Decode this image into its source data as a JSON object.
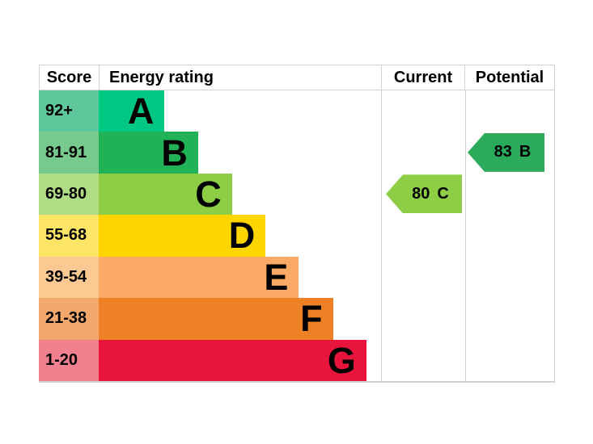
{
  "table": {
    "headers": [
      {
        "id": "score",
        "label": "Score"
      },
      {
        "id": "energy_rating",
        "label": "Energy rating"
      },
      {
        "id": "current",
        "label": "Current"
      },
      {
        "id": "potential",
        "label": "Potential"
      }
    ]
  },
  "chart_data": {
    "type": "bar",
    "title": "Energy rating",
    "description": "EPC energy efficiency rating chart with score bands A-G",
    "bands": [
      {
        "letter": "A",
        "score": "92+",
        "color": "#00c781",
        "score_bg": "#5ec79c",
        "bar_pct": 23.3
      },
      {
        "letter": "B",
        "score": "81-91",
        "color": "#21b258",
        "score_bg": "#77ca8e",
        "bar_pct": 35.2
      },
      {
        "letter": "C",
        "score": "69-80",
        "color": "#8dce46",
        "score_bg": "#afdc84",
        "bar_pct": 47.2
      },
      {
        "letter": "D",
        "score": "55-68",
        "color": "#ffd500",
        "score_bg": "#ffe566",
        "bar_pct": 59.1
      },
      {
        "letter": "E",
        "score": "39-54",
        "color": "#fbaa65",
        "score_bg": "#fcc993",
        "bar_pct": 70.9
      },
      {
        "letter": "F",
        "score": "21-38",
        "color": "#ee8025",
        "score_bg": "#f3a96d",
        "bar_pct": 83.0
      },
      {
        "letter": "G",
        "score": "1-20",
        "color": "#e9143c",
        "score_bg": "#f2818f",
        "bar_pct": 94.8
      }
    ],
    "current": {
      "value": "80",
      "letter": "C",
      "band_index": 2,
      "color": "#8dce46"
    },
    "potential": {
      "value": "83",
      "letter": "B",
      "band_index": 1,
      "color": "#2baa5c"
    }
  }
}
